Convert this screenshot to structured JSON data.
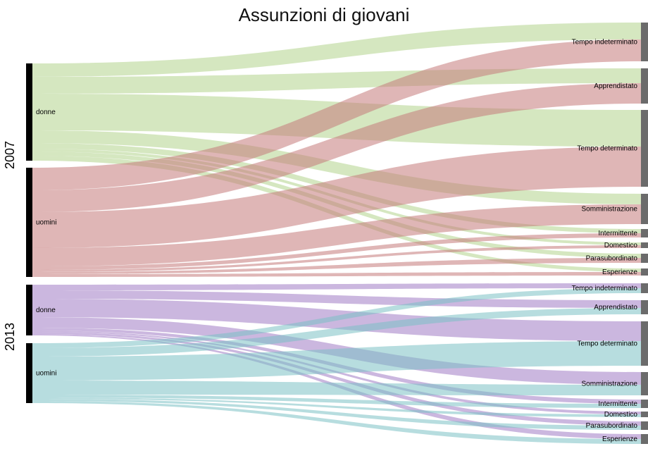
{
  "title": "Assunzioni di giovani",
  "colors": {
    "2007_donne": "#b2d38c",
    "2007_uomini": "#c57a7a",
    "2013_donne": "#a07cc5",
    "2013_uomini": "#7cc1c5",
    "source_bar": "#000000",
    "target_bar": "#6b6b6b"
  },
  "diagram": {
    "years": [
      {
        "label": "2007",
        "sources": [
          {
            "id": "d07",
            "label": "donne",
            "color_key": "2007_donne"
          },
          {
            "id": "u07",
            "label": "uomini",
            "color_key": "2007_uomini"
          }
        ],
        "targets": [
          {
            "id": "t07_ti",
            "label": "Tempo indeterminato"
          },
          {
            "id": "t07_ap",
            "label": "Apprendistato"
          },
          {
            "id": "t07_td",
            "label": "Tempo determinato"
          },
          {
            "id": "t07_so",
            "label": "Somministrazione"
          },
          {
            "id": "t07_in",
            "label": "Intermittente"
          },
          {
            "id": "t07_do",
            "label": "Domestico"
          },
          {
            "id": "t07_pa",
            "label": "Parasubordinato"
          },
          {
            "id": "t07_es",
            "label": "Esperienze"
          }
        ]
      },
      {
        "label": "2013",
        "sources": [
          {
            "id": "d13",
            "label": "donne",
            "color_key": "2013_donne"
          },
          {
            "id": "u13",
            "label": "uomini",
            "color_key": "2013_uomini"
          }
        ],
        "targets": [
          {
            "id": "t13_ti",
            "label": "Tempo indeterminato"
          },
          {
            "id": "t13_ap",
            "label": "Apprendistato"
          },
          {
            "id": "t13_td",
            "label": "Tempo determinato"
          },
          {
            "id": "t13_so",
            "label": "Somministrazione"
          },
          {
            "id": "t13_in",
            "label": "Intermittente"
          },
          {
            "id": "t13_do",
            "label": "Domestico"
          },
          {
            "id": "t13_pa",
            "label": "Parasubordinato"
          },
          {
            "id": "t13_es",
            "label": "Esperienze"
          }
        ]
      }
    ]
  }
}
